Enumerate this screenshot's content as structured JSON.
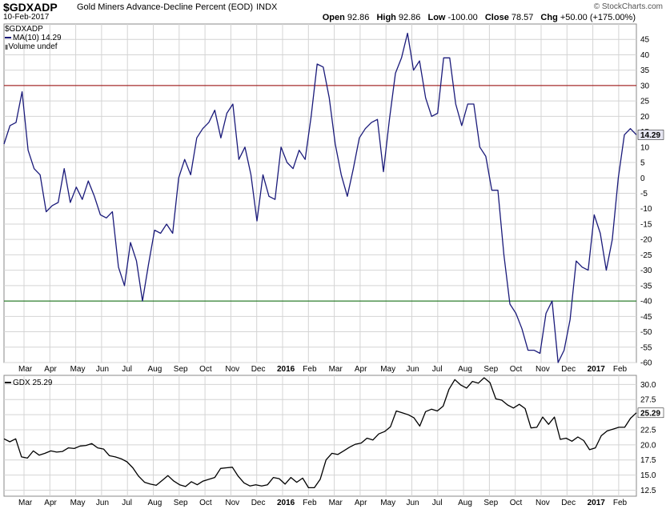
{
  "header": {
    "symbol": "$GDXADP",
    "description": "Gold Miners Advance-Decline Percent (EOD)",
    "exchange": "INDX",
    "date": "10-Feb-2017",
    "open_label": "Open",
    "open": "92.86",
    "high_label": "High",
    "high": "92.86",
    "low_label": "Low",
    "low": "-100.00",
    "close_label": "Close",
    "close": "78.57",
    "chg_label": "Chg",
    "chg": "+50.00 (+175.00%)",
    "credit": "© StockCharts.com"
  },
  "legend_top": {
    "symbol": "$GDXADP",
    "ma": "MA(10) 14.29",
    "volume": "Volume undef"
  },
  "legend_bottom": {
    "label": "GDX 25.29"
  },
  "colors": {
    "adp_line": "#1a1a7a",
    "gdx_line": "#000000",
    "upper_ref": "#990000",
    "lower_ref": "#006600",
    "grid": "#d4d4d4",
    "border": "#888888"
  },
  "chart_data": [
    {
      "type": "line",
      "name": "$GDXADP MA(10)",
      "x_ticks": [
        "Mar",
        "Apr",
        "May",
        "Jun",
        "Jul",
        "Aug",
        "Sep",
        "Oct",
        "Nov",
        "Dec",
        "2016",
        "Feb",
        "Mar",
        "Apr",
        "May",
        "Jun",
        "Jul",
        "Aug",
        "Sep",
        "Oct",
        "Nov",
        "Dec",
        "2017",
        "Feb"
      ],
      "ylim": [
        -60,
        50
      ],
      "y_ticks": [
        45,
        40,
        35,
        30,
        25,
        20,
        15,
        10,
        5,
        0,
        -5,
        -10,
        -15,
        -20,
        -25,
        -30,
        -35,
        -40,
        -45,
        -50,
        -55,
        -60
      ],
      "reference_lines": [
        30,
        -40
      ],
      "last_value_label": "14.29",
      "values": [
        11,
        17,
        18,
        28,
        9,
        3,
        1,
        -11,
        -9,
        -8,
        3,
        -8,
        -3,
        -7,
        -1,
        -6,
        -12,
        -13,
        -11,
        -29,
        -35,
        -21,
        -27,
        -40,
        -28,
        -17,
        -18,
        -15,
        -18,
        0,
        6,
        1,
        13,
        16,
        18,
        22,
        13,
        21,
        24,
        6,
        10,
        1,
        -14,
        1,
        -6,
        -7,
        10,
        5,
        3,
        9,
        6,
        20,
        37,
        36,
        26,
        11,
        1,
        -6,
        3,
        13,
        16,
        18,
        19,
        2,
        19,
        34,
        39,
        47,
        35,
        38,
        26,
        20,
        21,
        39,
        39,
        24,
        17,
        24,
        24,
        10,
        7,
        -4,
        -4,
        -25,
        -41,
        -44,
        -49,
        -56,
        -56,
        -57,
        -44,
        -40,
        -60,
        -56,
        -46,
        -27,
        -29,
        -30,
        -12,
        -18,
        -30,
        -20,
        0,
        14,
        16,
        14
      ]
    },
    {
      "type": "line",
      "name": "GDX",
      "ylim": [
        11.5,
        31.5
      ],
      "y_ticks": [
        30.0,
        27.5,
        25.0,
        22.5,
        20.0,
        17.5,
        15.0,
        12.5
      ],
      "last_value_label": "25.29",
      "values": [
        21,
        20.5,
        21,
        18,
        17.8,
        19,
        18.3,
        18.6,
        19,
        18.8,
        18.9,
        19.5,
        19.4,
        19.8,
        19.9,
        20.2,
        19.5,
        19.3,
        18.2,
        18,
        17.7,
        17.2,
        16.2,
        14.8,
        13.8,
        13.5,
        13.3,
        14.1,
        14.9,
        14,
        13.4,
        13.1,
        13.9,
        13.4,
        14,
        14.3,
        14.6,
        16.1,
        16.2,
        16.3,
        14.8,
        13.7,
        13.2,
        13.4,
        13.2,
        13.4,
        14.6,
        14.4,
        13.5,
        14.6,
        13.8,
        14.5,
        12.9,
        12.9,
        14.3,
        17.5,
        18.6,
        18.4,
        19,
        19.6,
        20.1,
        20.3,
        21.1,
        20.8,
        21.8,
        22.2,
        23,
        25.6,
        25.3,
        25,
        24.5,
        23.1,
        25.5,
        25.9,
        25.6,
        26.4,
        29.2,
        30.8,
        29.9,
        29.4,
        30.5,
        30.2,
        31.1,
        30.3,
        27.6,
        27.4,
        26.6,
        26.1,
        26.7,
        26,
        22.8,
        22.9,
        24.6,
        23.4,
        24.6,
        20.9,
        21.1,
        20.6,
        21.3,
        20.7,
        19.2,
        19.5,
        21.5,
        22.3,
        22.6,
        22.9,
        22.9,
        24.4,
        25.3
      ]
    }
  ]
}
